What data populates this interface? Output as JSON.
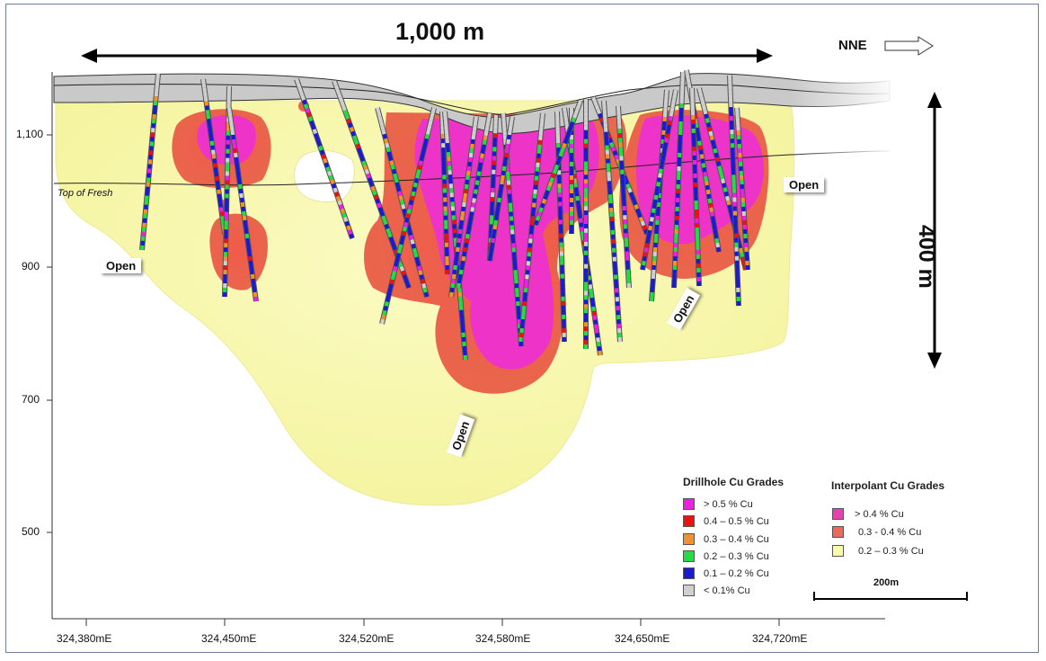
{
  "scale_labels": {
    "horizontal": "1,000 m",
    "vertical": "400 m",
    "scale_bar": "200m"
  },
  "direction": {
    "label": "NNE"
  },
  "layer_label": "Top of Fresh",
  "open_labels": [
    "Open",
    "Open",
    "Open",
    "Open"
  ],
  "axes": {
    "y_ticks": [
      "1,100",
      "900",
      "700",
      "500"
    ],
    "x_ticks": [
      "324,380mE",
      "324,450mE",
      "324,520mE",
      "324,580mE",
      "324,650mE",
      "324,720mE"
    ]
  },
  "legend_drillhole": {
    "title": "Drillhole Cu Grades",
    "items": [
      {
        "label": "> 0.5 % Cu",
        "color": "#ee1ee6"
      },
      {
        "label": "0.4 – 0.5 % Cu",
        "color": "#ee1111"
      },
      {
        "label": "0.3 – 0.4 % Cu",
        "color": "#f0932a"
      },
      {
        "label": "0.2 – 0.3 % Cu",
        "color": "#22dd44"
      },
      {
        "label": "0.1 – 0.2 % Cu",
        "color": "#1a1ad6"
      },
      {
        "label": "< 0.1% Cu",
        "color": "#d0d0d0"
      }
    ]
  },
  "legend_interpolant": {
    "title": "Interpolant Cu Grades",
    "items": [
      {
        "label": "> 0.4 % Cu",
        "color": "#ea3fb0"
      },
      {
        "label": "0.3  - 0.4 % Cu",
        "color": "#ea6b5c"
      },
      {
        "label": "0.2 – 0.3 % Cu",
        "color": "#fafaa8"
      }
    ]
  }
}
